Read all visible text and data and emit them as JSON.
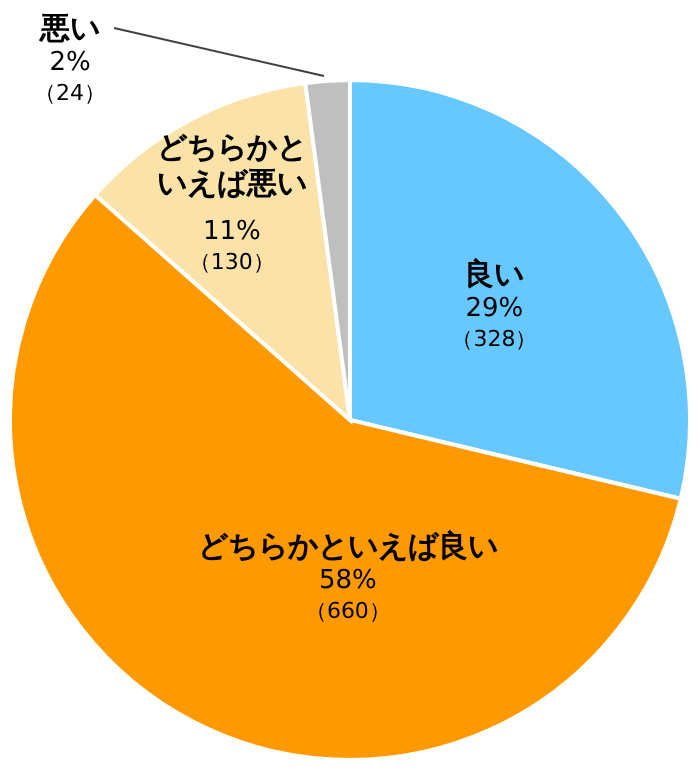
{
  "chart_data": {
    "type": "pie",
    "categories": [
      "良い",
      "どちらかといえば良い",
      "どちらかといえば悪い",
      "悪い"
    ],
    "values": [
      328,
      660,
      130,
      24
    ],
    "value_labels": [
      "29%\n（328）",
      "58%\n（660）",
      "11%\n（130）",
      "2%\n（24）"
    ],
    "colors": [
      "#66c8ff",
      "#ff9900",
      "#fae2a8",
      "#bfbfbf"
    ]
  }
}
